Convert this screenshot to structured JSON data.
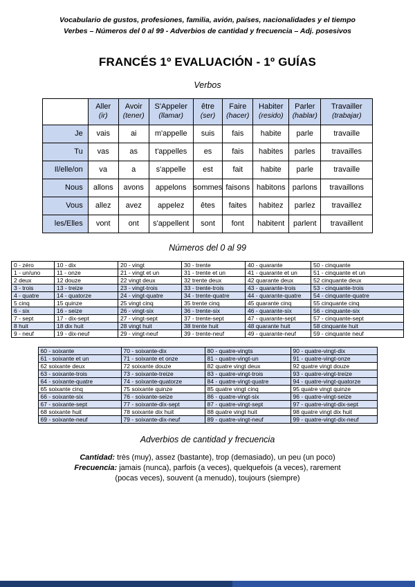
{
  "header": {
    "line1": "Vocabulario de gustos, profesiones, familia, avión, países, nacionalidades y el tiempo",
    "line2": "Verbes – Números del 0 al 99 - Adverbios de cantidad y frecuencia – Adj. posesivos",
    "title": "FRANCÉS 1º EVALUACIÓN - 1º GUÍAS"
  },
  "colors": {
    "table_header_bg": "#c9d6f0",
    "row_shade": "#d9e2f5",
    "footer_bar": "#1e3b6e"
  },
  "verbs": {
    "section_title": "Verbos",
    "columns": [
      {
        "name": "Aller",
        "translation": "(ir)"
      },
      {
        "name": "Avoir",
        "translation": "(tener)"
      },
      {
        "name": "S'Appeler",
        "translation": "(llamar)"
      },
      {
        "name": "être",
        "translation": "(ser)"
      },
      {
        "name": "Faire",
        "translation": "(hacer)"
      },
      {
        "name": "Habiter",
        "translation": "(resido)"
      },
      {
        "name": "Parler",
        "translation": "(hablar)"
      },
      {
        "name": "Travailler",
        "translation": "(trabajar)"
      }
    ],
    "rows": [
      {
        "pronoun": "Je",
        "forms": [
          "vais",
          "ai",
          "m'appelle",
          "suis",
          "fais",
          "habite",
          "parle",
          "travaille"
        ]
      },
      {
        "pronoun": "Tu",
        "forms": [
          "vas",
          "as",
          "t'appelles",
          "es",
          "fais",
          "habites",
          "parles",
          "travailles"
        ]
      },
      {
        "pronoun": "Il/elle/on",
        "forms": [
          "va",
          "a",
          "s'appelle",
          "est",
          "fait",
          "habite",
          "parle",
          "travaille"
        ]
      },
      {
        "pronoun": "Nous",
        "forms": [
          "allons",
          "avons",
          "appelons",
          "sommes",
          "faisons",
          "habitons",
          "parlons",
          "travaillons"
        ]
      },
      {
        "pronoun": "Vous",
        "forms": [
          "allez",
          "avez",
          "appelez",
          "êtes",
          "faites",
          "habitez",
          "parlez",
          "travaillez"
        ]
      },
      {
        "pronoun": "les/Elles",
        "forms": [
          "vont",
          "ont",
          "s'appellent",
          "sont",
          "font",
          "habitent",
          "parlent",
          "travaillent"
        ]
      }
    ]
  },
  "numbers": {
    "section_title": "Números del 0 al 99",
    "table1": {
      "rows": [
        [
          "0 - zéro",
          "10 - dix",
          "20 - vingt",
          "30 - trente",
          "40 - quarante",
          "50 - cinquante"
        ],
        [
          "1 - un/uno",
          "11 - onze",
          "21 - vingt et un",
          "31 - trente et un",
          "41 - quarante et un",
          "51 - cinquante et un"
        ],
        [
          "2   deux",
          "12   douze",
          "22   vingt deux",
          "32   trente deux",
          "42   quarante deux",
          "52   cinquante deux"
        ],
        [
          "3 - trois",
          "13 - treize",
          "23 - vingt-trois",
          "33 - trente-trois",
          "43 - quarante-trois",
          "53 - cinquante-trois"
        ],
        [
          "4 - quatre",
          "14 - quatorze",
          "24 - vingt-quatre",
          "34 - trente-quatre",
          "44 - quarante-quatre",
          "54 - cinquante-quatre"
        ],
        [
          "5   cinq",
          "15   quinze",
          "25   vingt cinq",
          "35   trente cinq",
          "45   quarante cinq",
          "55   cinquante cinq"
        ],
        [
          "6 - six",
          "16 - seize",
          "26 - vingt-six",
          "36 - trente-six",
          "46 - quarante-six",
          "56 - cinquante-six"
        ],
        [
          "7 - sept",
          "17 - dix-sept",
          "27 - vingt-sept",
          "37 - trente-sept",
          "47 - quarante-sept",
          "57 - cinquante-sept"
        ],
        [
          "8   huit",
          "18   dix huit",
          "28   vingt huit",
          "38   trente huit",
          "48   quarante huit",
          "58   cinquante huit"
        ],
        [
          "9 - neuf",
          "19 - dix-neuf",
          "29 - vingt-neuf",
          "39 - trente-neuf",
          "49 - quarante-neuf",
          "59 - cinquante neuf"
        ]
      ]
    },
    "table2": {
      "rows": [
        [
          "60 - soixante",
          "70 - soixante-dix",
          "80 - quatre-vingts",
          "90 - quatre-vingt-dix"
        ],
        [
          "61 - soixante et un",
          "71 - soixante et onze",
          "81 - quatre-vingt-un",
          "91 - quatre-vingt-onze"
        ],
        [
          "62   soixante deux",
          "72   soixante douze",
          "82   quatre vingt deux",
          "92   quatre vingt douze"
        ],
        [
          "63 - soixante-trois",
          "73 - soixante-treize",
          "83 - quatre-vingt-trois",
          "93 - quatre-vingt-treize"
        ],
        [
          "64 - soixante-quatre",
          "74 - soixante-quatorze",
          "84 - quatre-vingt-quatre",
          "94 - quatre-vingt-quatorze"
        ],
        [
          "65   soixante cinq",
          "75   soixante quinze",
          "85   quatre vingt cinq",
          "95   quatre vingt quinze"
        ],
        [
          "66 - soixante-six",
          "76 - soixante-seize",
          "86 - quatre-vingt-six",
          "96 - quatre-vingt-seize"
        ],
        [
          "67 - soixante-sept",
          "77 - soixante-dix-sept",
          "87 - quatre-vingt-sept",
          "97 - quatre-vingt-dix-sept"
        ],
        [
          "68   soixante huit",
          "78   soixante dix huit",
          "88   quatre vingt huit",
          "98   quatre vingt dix huit"
        ],
        [
          "69 - soixante-neuf",
          "79 - soixante-dix-neuf",
          "89 - quatre-vingt-neuf",
          "99 - quatre-vingt-dix-neuf"
        ]
      ]
    }
  },
  "adverbs": {
    "section_title": "Adverbios de cantidad y frecuencia",
    "cantidad_label": "Cantidad:",
    "cantidad_text": " très (muy), assez (bastante), trop (demasiado), un peu (un poco)",
    "frecuencia_label": "Frecuencia:",
    "frecuencia_text": " jamais (nunca), parfois (a veces), quelquefois (a veces), rarement (pocas veces), souvent (a menudo), toujours (siempre)"
  }
}
